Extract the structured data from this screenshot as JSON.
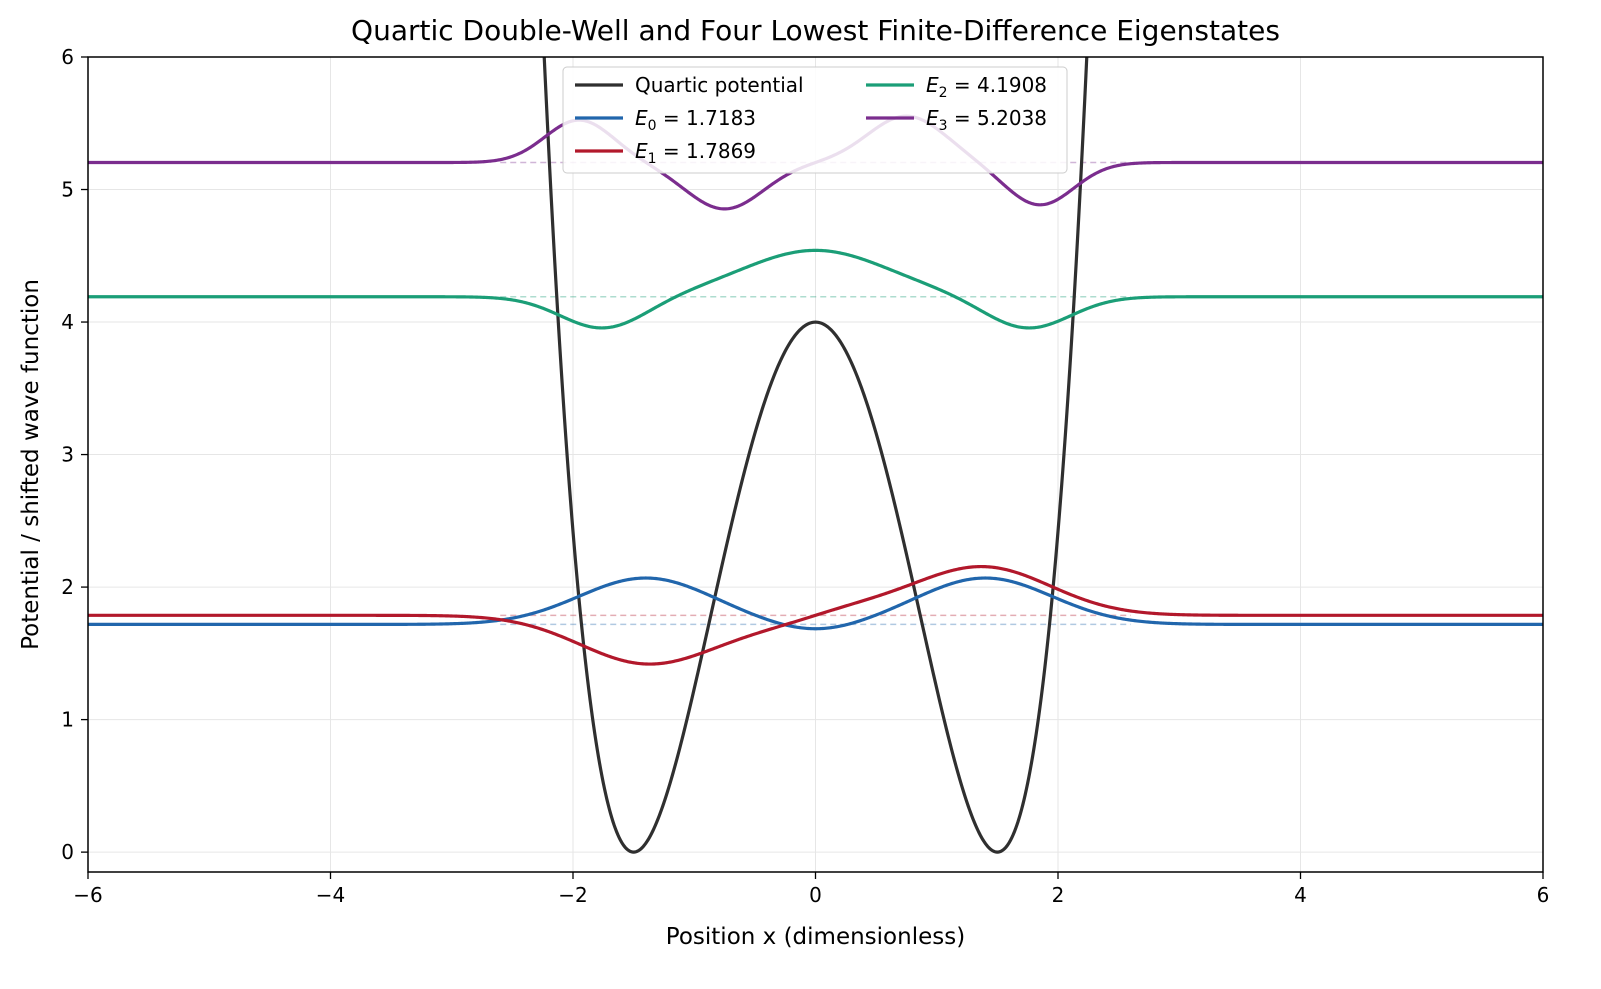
{
  "chart_data": {
    "type": "line",
    "title": "Quartic Double-Well and Four Lowest Finite-Difference Eigenstates",
    "xlabel": "Position x (dimensionless)",
    "ylabel": "Potential / shifted wave function",
    "xlim": [
      -6,
      6
    ],
    "ylim": [
      -0.15,
      6
    ],
    "xticks": [
      -6,
      -4,
      -2,
      0,
      2,
      4,
      6
    ],
    "xtick_labels": [
      "−6",
      "−4",
      "−2",
      "0",
      "2",
      "4",
      "6"
    ],
    "yticks": [
      0,
      1,
      2,
      3,
      4,
      5,
      6
    ],
    "ytick_labels": [
      "0",
      "1",
      "2",
      "3",
      "4",
      "5",
      "6"
    ],
    "grid": true,
    "legend_placement": "upper-center",
    "potential": {
      "name": "Quartic potential",
      "color": "#2f2f2f",
      "formula": "V(x) = (x^2 - 2.25)^2 * 0.79"
    },
    "eigenstates": [
      {
        "label_prefix": "E",
        "label_sub": "0",
        "label_value": " = 1.7183",
        "energy": 1.7183,
        "color": "#2166ac",
        "kind": "even-ground",
        "amp": 0.35,
        "wells": [
          -1.4,
          1.4
        ]
      },
      {
        "label_prefix": "E",
        "label_sub": "1",
        "label_value": " = 1.7869",
        "energy": 1.7869,
        "color": "#b2182b",
        "kind": "odd-ground",
        "amp": 0.35,
        "wells": [
          -1.4,
          1.4
        ]
      },
      {
        "label_prefix": "E",
        "label_sub": "2",
        "label_value": " = 4.1908",
        "energy": 4.1908,
        "color": "#1b9e77",
        "kind": "even-excited",
        "amp": 0.35
      },
      {
        "label_prefix": "E",
        "label_sub": "3",
        "label_value": " = 5.2038",
        "energy": 5.2038,
        "color": "#7b2d8e",
        "kind": "odd-excited",
        "amp": 0.35
      }
    ],
    "energy_line_range": [
      -2.6,
      2.6
    ]
  }
}
